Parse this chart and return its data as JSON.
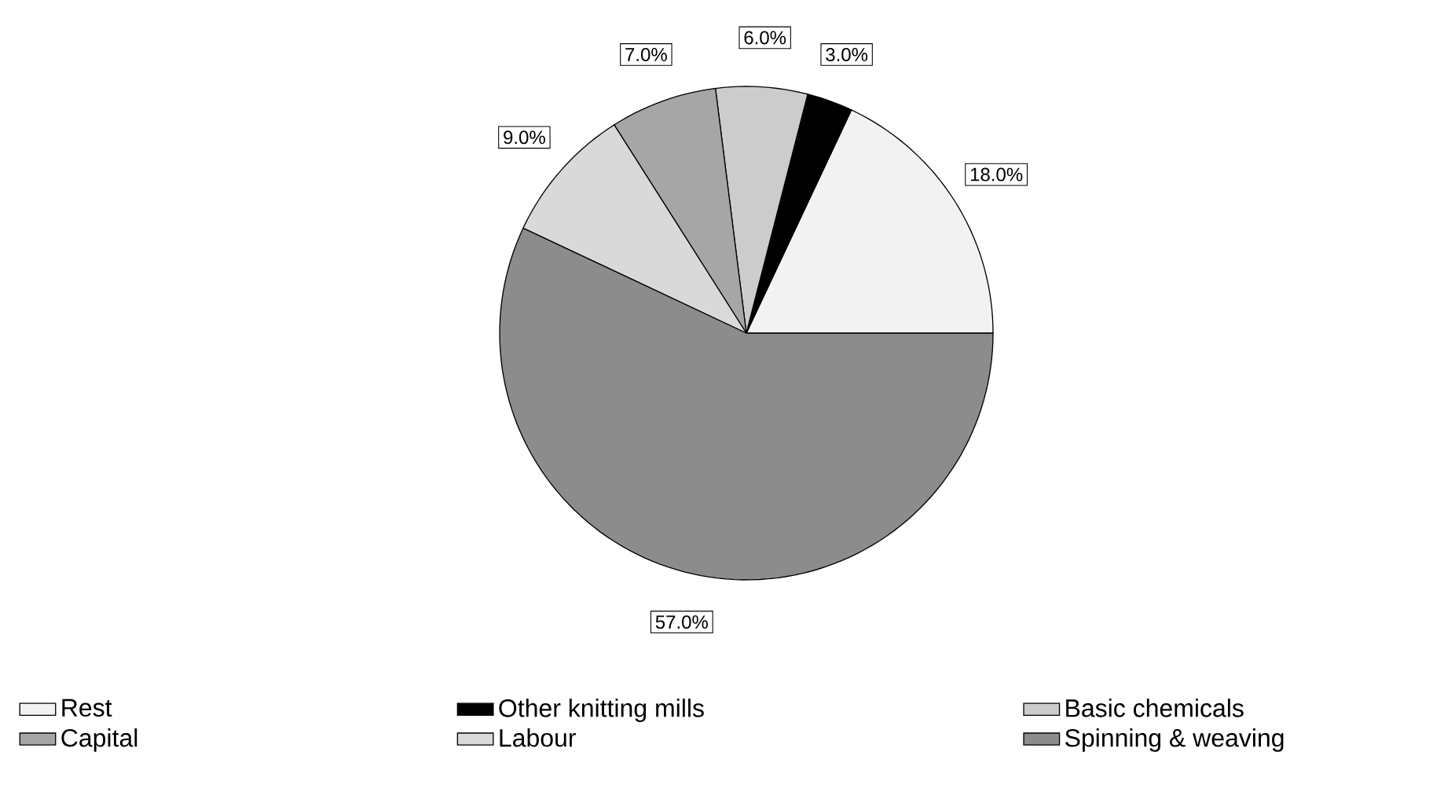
{
  "chart_data": {
    "type": "pie",
    "categories": [
      "Rest",
      "Other knitting mills",
      "Basic chemicals",
      "Capital",
      "Labour",
      "Spinning & weaving"
    ],
    "values": [
      18,
      3,
      6,
      7,
      9,
      57
    ],
    "colors": [
      "#f2f2f2",
      "#000000",
      "#cccccc",
      "#a6a6a6",
      "#d9d9d9",
      "#8c8c8c"
    ],
    "value_labels": [
      "18.0%",
      "3.0%",
      "6.0%",
      "7.0%",
      "9.0%",
      "57.0%"
    ],
    "legend": "bottom"
  }
}
